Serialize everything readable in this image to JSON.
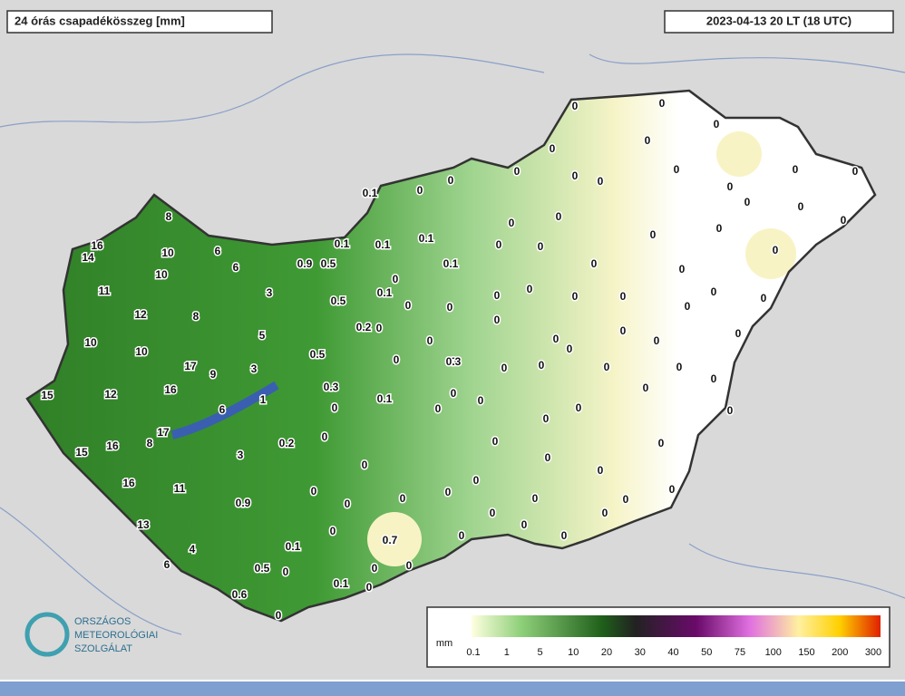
{
  "header": {
    "title": "24 órás csapadékösszeg [mm]",
    "timestamp": "2023-04-13 20 LT (18 UTC)"
  },
  "stations": [
    "8",
    "16",
    "14",
    "10",
    "6",
    "10",
    "6",
    "11",
    "3",
    "12",
    "8",
    "10",
    "10",
    "5",
    "17",
    "9",
    "3",
    "15",
    "12",
    "16",
    "6",
    "1",
    "17",
    "8",
    "16",
    "15",
    "3",
    "16",
    "11",
    "0.9",
    "13",
    "4",
    "6",
    "0.6",
    "0.1",
    "0.5",
    "0",
    "0",
    "0.2",
    "0.9",
    "0.5",
    "0.1",
    "0.5",
    "0.2",
    "0.5",
    "0.3",
    "0",
    "0",
    "0",
    "0",
    "0",
    "0",
    "0.1",
    "0",
    "0.7",
    "0",
    "0",
    "0",
    "0",
    "0.1",
    "0",
    "0",
    "0.1",
    "0.1",
    "0.1",
    "0",
    "0.1",
    "0",
    "0",
    "0",
    "0.1",
    "0",
    "0",
    "0",
    "0",
    "0",
    "0",
    "0",
    "0",
    "0",
    "0",
    "0",
    "0",
    "0",
    "0",
    "0",
    "0",
    "0",
    "0",
    "0",
    "0",
    "0",
    "0",
    "0",
    "0",
    "0",
    "0",
    "0",
    "0",
    "0",
    "0",
    "0",
    "0",
    "0",
    "0",
    "0",
    "0",
    "0",
    "0",
    "0",
    "0",
    "0",
    "0",
    "0",
    "0",
    "0",
    "0",
    "0",
    "0",
    "0",
    "0",
    "0",
    "0",
    "0",
    "0",
    "0",
    "0",
    "0",
    "0",
    "0",
    "0",
    "0",
    "0",
    "0",
    "0",
    "0",
    "0",
    "0.3"
  ],
  "legend": {
    "unit": "mm",
    "labels": [
      "0.1",
      "1",
      "5",
      "10",
      "20",
      "30",
      "40",
      "50",
      "75",
      "100",
      "150",
      "200",
      "300"
    ]
  },
  "logo": {
    "lines": [
      "ORSZÁGOS",
      "METEOROLÓGIAI",
      "SZOLGÁLAT"
    ]
  }
}
